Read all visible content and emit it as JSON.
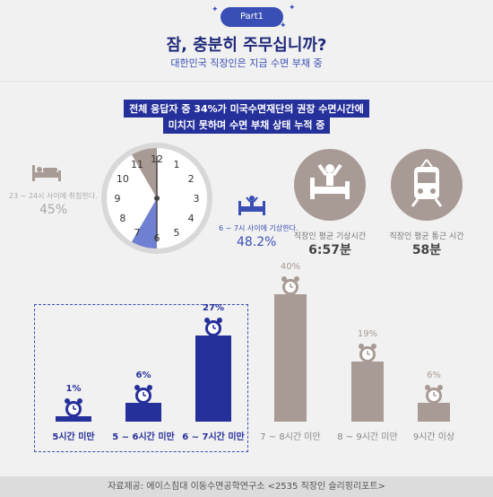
{
  "header": {
    "badge": "Part1",
    "title": "잠, 충분히 주무십니까?",
    "subtitle": "대한민국 직장인은 지금 수면 부채 중"
  },
  "highlight": {
    "line1": "전체 응답자 중 34%가 미국수면재단의 권장 수면시간에",
    "line2": "미치지 못하며 수면 부채 상태 누적 중"
  },
  "bedtime": {
    "label": "23 ~ 24시 사이에 취침한다.",
    "value": "45%"
  },
  "wake": {
    "label": "6 ~ 7시 사이에 기상한다.",
    "value": "48.2%"
  },
  "clock_numbers": [
    "12",
    "1",
    "2",
    "3",
    "4",
    "5",
    "6",
    "7",
    "8",
    "9",
    "10",
    "11"
  ],
  "stats": [
    {
      "label": "직장인 평균 기상시간",
      "value": "6:57분",
      "icon": "wake-up-icon"
    },
    {
      "label": "직장인 평균 통근 시간",
      "value": "58분",
      "icon": "train-icon"
    }
  ],
  "chart_data": {
    "type": "bar",
    "categories": [
      "5시간 미만",
      "5 ~ 6시간 미만",
      "6 ~ 7시간 미만",
      "7 ~ 8시간 미만",
      "8 ~ 9시간 미만",
      "9시간 이상"
    ],
    "values": [
      1,
      6,
      27,
      40,
      19,
      6
    ],
    "labels": [
      "1%",
      "6%",
      "27%",
      "40%",
      "19%",
      "6%"
    ],
    "ylim": [
      0,
      40
    ],
    "colors": {
      "highlight": "#26309a",
      "muted": "#a89a94"
    },
    "highlighted": [
      true,
      true,
      true,
      false,
      false,
      false
    ]
  },
  "footer": "자료제공: 에이스침대 이동수면공학연구소 <2535 직장인 슬리핑리포트>"
}
